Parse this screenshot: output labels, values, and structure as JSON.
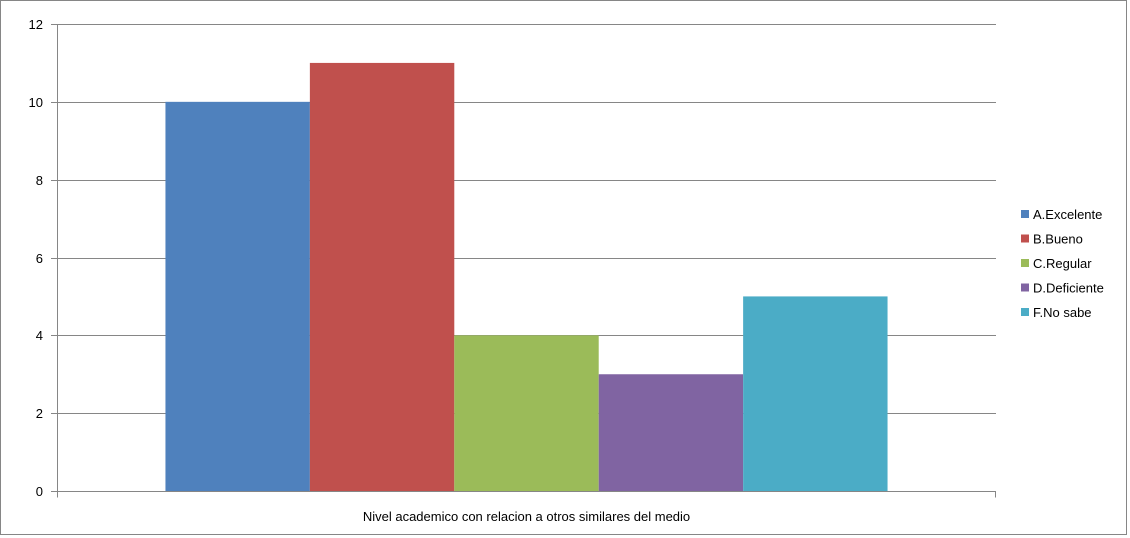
{
  "chart_data": {
    "type": "bar",
    "categories": [
      "Nivel academico con relacion a otros similares del medio"
    ],
    "series": [
      {
        "name": "A.Excelente",
        "values": [
          10
        ],
        "color": "#4F81BD"
      },
      {
        "name": "B.Bueno",
        "values": [
          11
        ],
        "color": "#C0504D"
      },
      {
        "name": "C.Regular",
        "values": [
          4
        ],
        "color": "#9BBB59"
      },
      {
        "name": "D.Deficiente",
        "values": [
          3
        ],
        "color": "#8064A2"
      },
      {
        "name": "F.No sabe",
        "values": [
          5
        ],
        "color": "#4BACC6"
      }
    ],
    "ylim": [
      0,
      12
    ],
    "yticks": [
      "0",
      "2",
      "4",
      "6",
      "8",
      "10",
      "12"
    ],
    "grid": true,
    "legend_position": "right",
    "gridline_color": "#868686"
  }
}
